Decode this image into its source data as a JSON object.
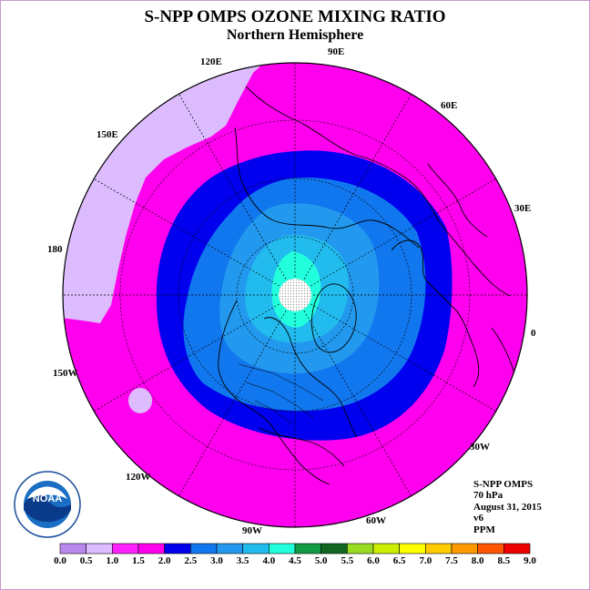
{
  "title": "S-NPP OMPS OZONE MIXING RATIO",
  "subtitle": "Northern Hemisphere",
  "longitude_labels": [
    {
      "id": "lon-120e",
      "text": "120E"
    },
    {
      "id": "lon-90e",
      "text": "90E"
    },
    {
      "id": "lon-60e",
      "text": "60E"
    },
    {
      "id": "lon-150e",
      "text": "150E"
    },
    {
      "id": "lon-30e",
      "text": "30E"
    },
    {
      "id": "lon-180",
      "text": "180"
    },
    {
      "id": "lon-0",
      "text": "0"
    },
    {
      "id": "lon-150w",
      "text": "150W"
    },
    {
      "id": "lon-120w",
      "text": "120W"
    },
    {
      "id": "lon-30w",
      "text": "30W"
    },
    {
      "id": "lon-90w",
      "text": "90W"
    },
    {
      "id": "lon-60w",
      "text": "60W"
    }
  ],
  "info": {
    "instrument": "S-NPP OMPS",
    "level": "70 hPa",
    "date": "August 31, 2015",
    "version": "v6",
    "units": "PPM"
  },
  "logo": {
    "text": "NOAA",
    "ring_text": "NATIONAL OCEANIC AND ATMOSPHERIC ADMINISTRATION · U.S. DEPARTMENT OF COMMERCE"
  },
  "colorbar": {
    "ticks": [
      "0.0",
      "0.5",
      "1.0",
      "1.5",
      "2.0",
      "2.5",
      "3.0",
      "3.5",
      "4.0",
      "4.5",
      "5.0",
      "5.5",
      "6.0",
      "6.5",
      "7.0",
      "7.5",
      "8.0",
      "8.5",
      "9.0"
    ],
    "colors": [
      "#bb88ee",
      "#ddbbff",
      "#ff22ff",
      "#ff00ee",
      "#0000ee",
      "#1177ee",
      "#2299ee",
      "#22bbee",
      "#22ffdd",
      "#119944",
      "#116622",
      "#99dd22",
      "#ccee00",
      "#ffff00",
      "#ffcc00",
      "#ff9900",
      "#ff5500",
      "#ee0000",
      "#996644"
    ]
  },
  "colors": {
    "lavender": "#ddbbff",
    "magenta": "#ff00ee",
    "dark_blue": "#0000ee",
    "mid_blue": "#1177ee",
    "blue": "#2299ee",
    "light_blue": "#22bbee",
    "cyan": "#22ffdd"
  }
}
